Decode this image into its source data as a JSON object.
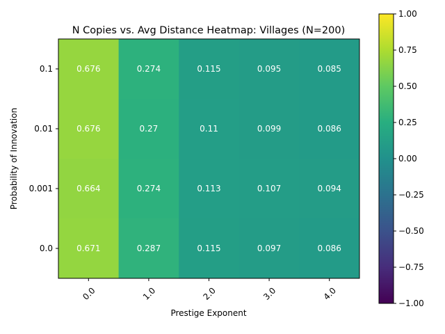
{
  "chart_data": {
    "type": "heatmap",
    "title": "N Copies vs. Avg Distance Heatmap: Villages (N=200)",
    "xlabel": "Prestige Exponent",
    "ylabel": "Probability of Innovation",
    "x_categories": [
      "0.0",
      "1.0",
      "2.0",
      "3.0",
      "4.0"
    ],
    "y_categories": [
      "0.1",
      "0.01",
      "0.001",
      "0.0"
    ],
    "values": [
      [
        0.676,
        0.274,
        0.115,
        0.095,
        0.085
      ],
      [
        0.676,
        0.27,
        0.11,
        0.099,
        0.086
      ],
      [
        0.664,
        0.274,
        0.113,
        0.107,
        0.094
      ],
      [
        0.671,
        0.287,
        0.115,
        0.097,
        0.086
      ]
    ],
    "cell_labels": [
      [
        "0.676",
        "0.274",
        "0.115",
        "0.095",
        "0.085"
      ],
      [
        "0.676",
        "0.27",
        "0.11",
        "0.099",
        "0.086"
      ],
      [
        "0.664",
        "0.274",
        "0.113",
        "0.107",
        "0.094"
      ],
      [
        "0.671",
        "0.287",
        "0.115",
        "0.097",
        "0.086"
      ]
    ],
    "colormap": "viridis",
    "vmin": -1.0,
    "vmax": 1.0,
    "colorbar_ticks": [
      "1.00",
      "0.75",
      "0.50",
      "0.25",
      "0.00",
      "−0.25",
      "−0.50",
      "−0.75",
      "−1.00"
    ],
    "colorbar_tick_values": [
      1.0,
      0.75,
      0.5,
      0.25,
      0.0,
      -0.25,
      -0.5,
      -0.75,
      -1.0
    ],
    "cell_label_color": "#ffffff",
    "grid": false
  }
}
